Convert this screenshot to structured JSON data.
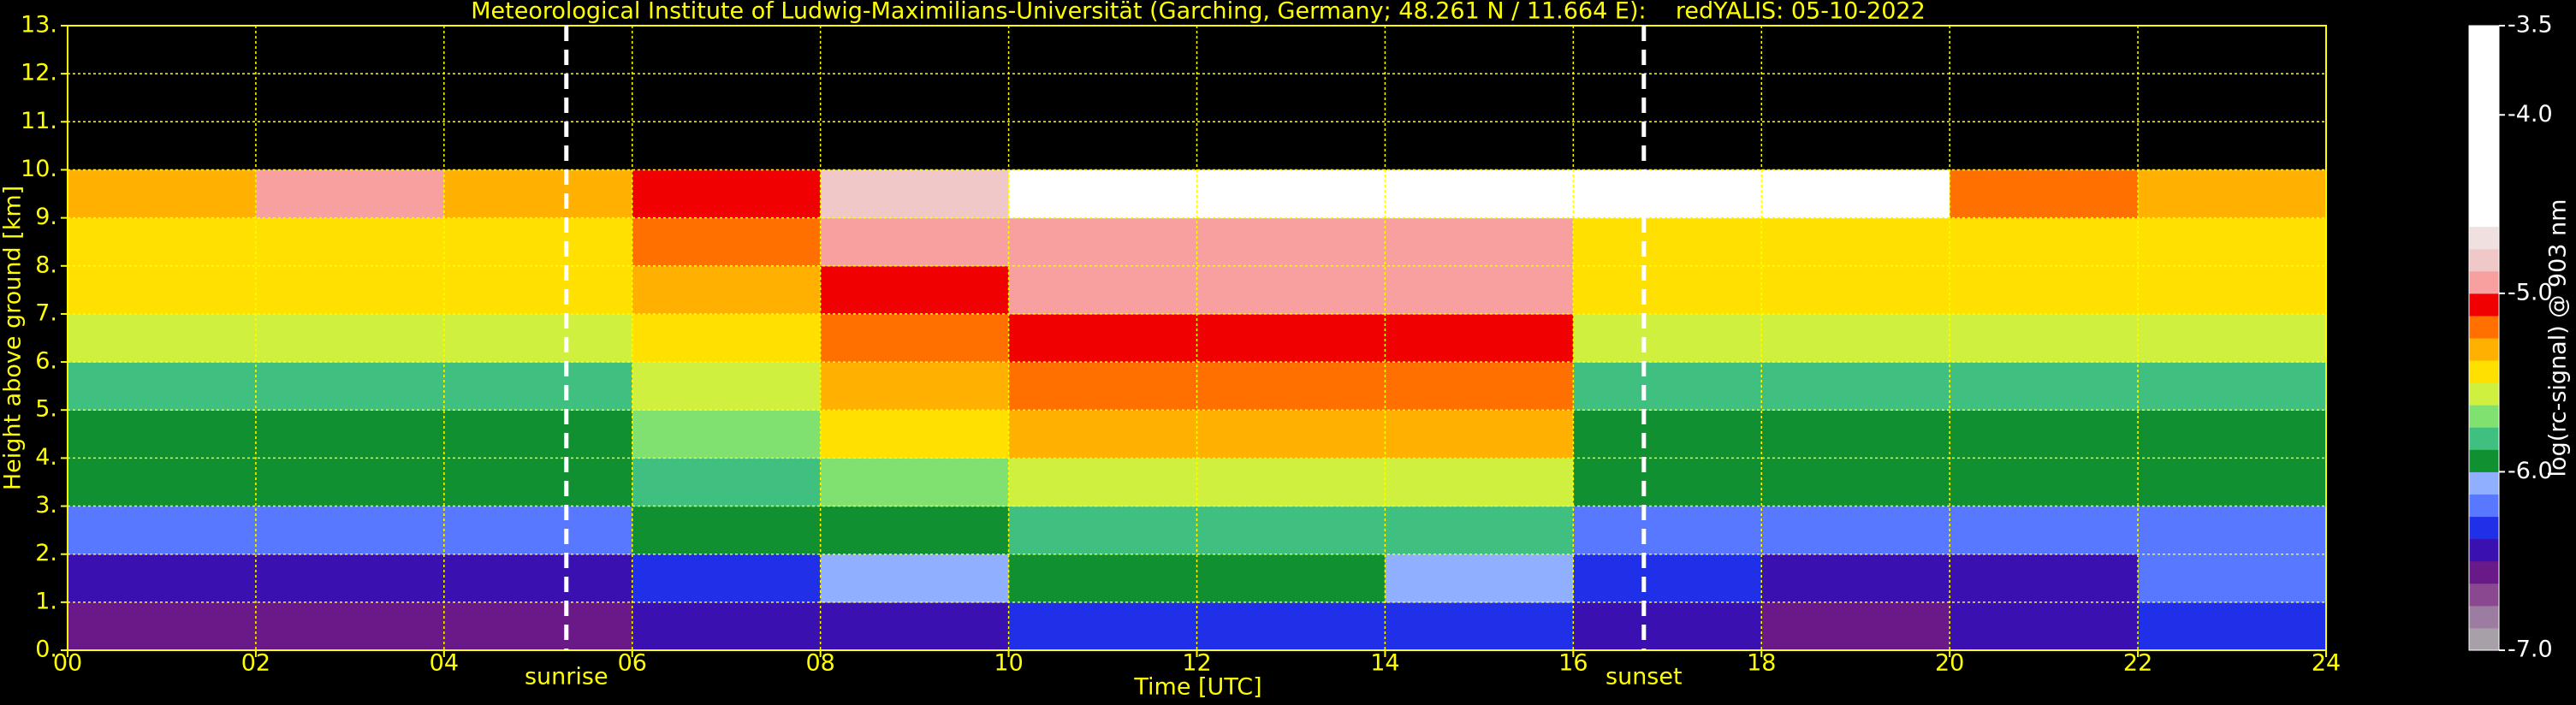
{
  "chart_data": {
    "type": "heatmap",
    "title": "Meteorological Institute of Ludwig-Maximilians-Universität (Garching, Germany; 48.261 N / 11.664 E):    redYALIS: 05-10-2022",
    "x_label": "Time [UTC]",
    "y_label": "Height above ground [km]",
    "colorbar_label": "log(rc-signal) @ 903 nm",
    "xlim": [
      0,
      24
    ],
    "ylim": [
      0,
      13
    ],
    "xticks": [
      {
        "value": 0,
        "label": "00"
      },
      {
        "value": 2,
        "label": "02"
      },
      {
        "value": 4,
        "label": "04"
      },
      {
        "value": 6,
        "label": "06"
      },
      {
        "value": 8,
        "label": "08"
      },
      {
        "value": 10,
        "label": "10"
      },
      {
        "value": 12,
        "label": "12"
      },
      {
        "value": 14,
        "label": "14"
      },
      {
        "value": 16,
        "label": "16"
      },
      {
        "value": 18,
        "label": "18"
      },
      {
        "value": 20,
        "label": "20"
      },
      {
        "value": 22,
        "label": "22"
      },
      {
        "value": 24,
        "label": "24"
      }
    ],
    "yticks": [
      {
        "value": 0,
        "label": "0."
      },
      {
        "value": 1,
        "label": "1."
      },
      {
        "value": 2,
        "label": "2."
      },
      {
        "value": 3,
        "label": "3."
      },
      {
        "value": 4,
        "label": "4."
      },
      {
        "value": 5,
        "label": "5."
      },
      {
        "value": 6,
        "label": "6."
      },
      {
        "value": 7,
        "label": "7."
      },
      {
        "value": 8,
        "label": "8."
      },
      {
        "value": 9,
        "label": "9."
      },
      {
        "value": 10,
        "label": "10."
      },
      {
        "value": 11,
        "label": "11."
      },
      {
        "value": 12,
        "label": "12."
      },
      {
        "value": 13,
        "label": "13."
      }
    ],
    "grid": true,
    "grid_color": "#ffff00",
    "events": [
      {
        "x": 5.3,
        "label": "sunrise"
      },
      {
        "x": 16.75,
        "label": "sunset"
      }
    ],
    "time_bins": [
      0,
      2,
      4,
      6,
      8,
      10,
      12,
      14,
      16,
      18,
      20,
      22,
      24
    ],
    "height_bins": [
      0,
      1,
      2,
      3,
      4,
      5,
      6,
      7,
      8,
      9,
      10
    ],
    "z": [
      [
        -6.6,
        -6.6,
        -6.6,
        -6.5,
        -6.4,
        -6.3,
        -6.3,
        -6.3,
        -6.5,
        -6.6,
        -6.4,
        -6.3
      ],
      [
        -6.4,
        -6.4,
        -6.4,
        -6.3,
        -6.1,
        -6.0,
        -6.0,
        -6.1,
        -6.3,
        -6.4,
        -6.4,
        -6.2
      ],
      [
        -6.2,
        -6.2,
        -6.2,
        -6.0,
        -5.9,
        -5.8,
        -5.8,
        -5.8,
        -6.2,
        -6.2,
        -6.2,
        -6.2
      ],
      [
        -6.0,
        -6.0,
        -6.0,
        -5.8,
        -5.7,
        -5.6,
        -5.6,
        -5.6,
        -6.0,
        -6.0,
        -6.0,
        -6.0
      ],
      [
        -5.9,
        -5.9,
        -5.9,
        -5.7,
        -5.4,
        -5.3,
        -5.3,
        -5.3,
        -5.9,
        -5.9,
        -5.9,
        -5.9
      ],
      [
        -5.8,
        -5.8,
        -5.8,
        -5.6,
        -5.3,
        -5.2,
        -5.2,
        -5.2,
        -5.8,
        -5.8,
        -5.8,
        -5.8
      ],
      [
        -5.6,
        -5.6,
        -5.6,
        -5.4,
        -5.2,
        -5.1,
        -5.1,
        -5.1,
        -5.6,
        -5.6,
        -5.6,
        -5.6
      ],
      [
        -5.5,
        -5.5,
        -5.5,
        -5.3,
        -5.1,
        -5.0,
        -5.0,
        -5.0,
        -5.5,
        -5.5,
        -5.5,
        -5.5
      ],
      [
        -5.4,
        -5.4,
        -5.4,
        -5.2,
        -5.0,
        -4.9,
        -4.9,
        -4.9,
        -5.4,
        -5.4,
        -5.4,
        -5.4
      ],
      [
        -5.3,
        -5.0,
        -5.3,
        -5.1,
        -4.8,
        -4.5,
        -4.6,
        -4.4,
        -4.2,
        -4.6,
        -5.2,
        -5.3
      ]
    ],
    "clim": [
      -7,
      -3.5
    ],
    "cticks": [
      {
        "value": -7,
        "label": "-7.0"
      },
      {
        "value": -6,
        "label": "-6.0"
      },
      {
        "value": -5,
        "label": "-5.0"
      },
      {
        "value": -4,
        "label": "-4.0"
      },
      -3.5
    ],
    "colorscale": [
      "#a8a0a8",
      "#9c7ca0",
      "#8a4890",
      "#6a1a88",
      "#3a10b0",
      "#2030e8",
      "#5878ff",
      "#90b0ff",
      "#109030",
      "#40c080",
      "#80e070",
      "#d0f040",
      "#ffe000",
      "#ffb000",
      "#ff7000",
      "#f00000",
      "#f8a0a0",
      "#f0c8c8",
      "#f0e0e0",
      "#ffffff",
      "#ffffff",
      "#ffffff",
      "#ffffff",
      "#ffffff",
      "#ffffff",
      "#ffffff",
      "#ffffff",
      "#ffffff"
    ]
  }
}
